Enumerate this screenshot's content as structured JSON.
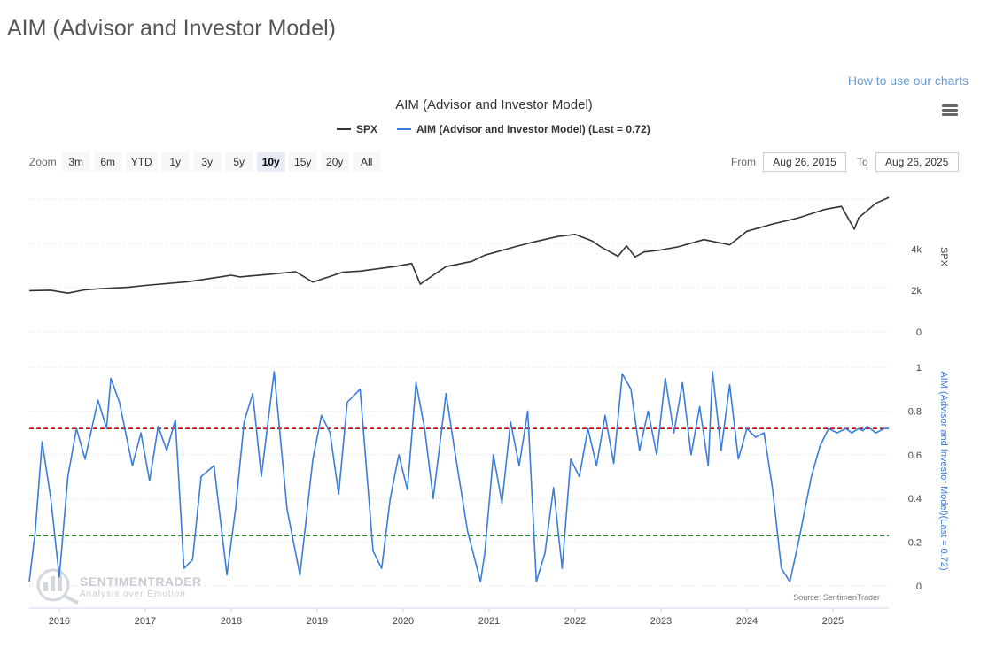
{
  "page": {
    "title": "AIM (Advisor and Investor Model)",
    "help_link": "How to use our charts"
  },
  "toolbar": {
    "zoom_label": "Zoom",
    "zoom_buttons": [
      "3m",
      "6m",
      "YTD",
      "1y",
      "3y",
      "5y",
      "10y",
      "15y",
      "20y",
      "All"
    ],
    "active_zoom": "10y",
    "from_label": "From",
    "from_value": "Aug 26, 2015",
    "to_label": "To",
    "to_value": "Aug 26, 2025"
  },
  "colors": {
    "spx": "#333333",
    "aim": "#3b7dd8",
    "upper_threshold": "#cc0000",
    "lower_threshold": "#1a8a1a",
    "grid": "#dddddd"
  },
  "watermark": {
    "name": "SENTIMENTRADER",
    "tagline": "Analysis over Emotion"
  },
  "chart_data": {
    "type": "line",
    "title": "AIM (Advisor and Investor Model)",
    "legend": {
      "spx": "SPX",
      "aim": "AIM (Advisor and Investor Model) (Last = 0.72)"
    },
    "source": "Source: SentimenTrader",
    "x_range": [
      2015.65,
      2025.65
    ],
    "x_ticks": [
      "2016",
      "2017",
      "2018",
      "2019",
      "2020",
      "2021",
      "2022",
      "2023",
      "2024",
      "2025"
    ],
    "spx_axis": {
      "title": "SPX",
      "ticks": [
        0,
        2000,
        4000
      ],
      "tick_labels": [
        "0",
        "2k",
        "4k"
      ],
      "range": [
        0,
        6400
      ]
    },
    "aim_axis": {
      "title": "AIM (Advisor and Investor Model)(Last = 0.72)",
      "ticks": [
        0,
        0.2,
        0.4,
        0.6,
        0.8,
        1
      ],
      "tick_labels": [
        "0",
        "0.2",
        "0.4",
        "0.6",
        "0.8",
        "1"
      ],
      "range": [
        0,
        1
      ]
    },
    "thresholds": {
      "upper": 0.72,
      "lower": 0.23
    },
    "series": [
      {
        "name": "SPX",
        "x": [
          2015.65,
          2015.9,
          2016.1,
          2016.3,
          2016.5,
          2016.8,
          2017.0,
          2017.5,
          2018.0,
          2018.1,
          2018.5,
          2018.75,
          2018.95,
          2019.3,
          2019.5,
          2019.9,
          2020.1,
          2020.2,
          2020.25,
          2020.5,
          2020.8,
          2020.95,
          2021.3,
          2021.5,
          2021.8,
          2022.0,
          2022.2,
          2022.3,
          2022.5,
          2022.6,
          2022.7,
          2022.8,
          2023.0,
          2023.2,
          2023.5,
          2023.8,
          2024.0,
          2024.3,
          2024.6,
          2024.9,
          2025.1,
          2025.25,
          2025.3,
          2025.5,
          2025.65
        ],
        "values": [
          1990,
          2010,
          1870,
          2030,
          2090,
          2150,
          2240,
          2420,
          2730,
          2650,
          2800,
          2900,
          2400,
          2880,
          2930,
          3150,
          3300,
          2300,
          2450,
          3150,
          3400,
          3700,
          4100,
          4320,
          4600,
          4700,
          4380,
          4100,
          3650,
          4150,
          3620,
          3850,
          3950,
          4100,
          4450,
          4200,
          4850,
          5200,
          5500,
          5900,
          6050,
          4950,
          5500,
          6200,
          6480
        ]
      },
      {
        "name": "AIM (Advisor and Investor Model)",
        "x": [
          2015.65,
          2015.72,
          2015.8,
          2015.9,
          2016.0,
          2016.1,
          2016.2,
          2016.3,
          2016.45,
          2016.55,
          2016.6,
          2016.7,
          2016.85,
          2016.95,
          2017.05,
          2017.15,
          2017.25,
          2017.35,
          2017.45,
          2017.55,
          2017.65,
          2017.8,
          2017.95,
          2018.05,
          2018.15,
          2018.25,
          2018.35,
          2018.5,
          2018.65,
          2018.8,
          2018.95,
          2019.05,
          2019.15,
          2019.25,
          2019.35,
          2019.5,
          2019.65,
          2019.75,
          2019.85,
          2019.95,
          2020.05,
          2020.15,
          2020.25,
          2020.35,
          2020.5,
          2020.6,
          2020.75,
          2020.9,
          2020.95,
          2021.05,
          2021.15,
          2021.25,
          2021.35,
          2021.45,
          2021.55,
          2021.65,
          2021.75,
          2021.85,
          2021.95,
          2022.05,
          2022.15,
          2022.25,
          2022.35,
          2022.45,
          2022.55,
          2022.65,
          2022.75,
          2022.85,
          2022.95,
          2023.05,
          2023.15,
          2023.25,
          2023.35,
          2023.45,
          2023.55,
          2023.6,
          2023.7,
          2023.8,
          2023.9,
          2024.0,
          2024.1,
          2024.2,
          2024.3,
          2024.4,
          2024.5,
          2024.6,
          2024.7,
          2024.75,
          2024.85,
          2024.9,
          2024.95,
          2025.05,
          2025.1,
          2025.15,
          2025.22,
          2025.3,
          2025.35,
          2025.4,
          2025.5,
          2025.6,
          2025.65
        ],
        "values": [
          0.02,
          0.25,
          0.66,
          0.4,
          0.04,
          0.5,
          0.72,
          0.58,
          0.85,
          0.72,
          0.95,
          0.84,
          0.55,
          0.7,
          0.48,
          0.73,
          0.62,
          0.76,
          0.08,
          0.12,
          0.5,
          0.55,
          0.05,
          0.35,
          0.75,
          0.88,
          0.5,
          0.98,
          0.35,
          0.05,
          0.58,
          0.78,
          0.7,
          0.42,
          0.84,
          0.9,
          0.16,
          0.08,
          0.4,
          0.6,
          0.44,
          0.93,
          0.72,
          0.4,
          0.88,
          0.62,
          0.25,
          0.02,
          0.15,
          0.6,
          0.38,
          0.75,
          0.55,
          0.8,
          0.02,
          0.15,
          0.45,
          0.08,
          0.58,
          0.5,
          0.72,
          0.55,
          0.78,
          0.56,
          0.97,
          0.9,
          0.62,
          0.8,
          0.6,
          0.95,
          0.7,
          0.93,
          0.6,
          0.82,
          0.55,
          0.98,
          0.62,
          0.92,
          0.58,
          0.72,
          0.68,
          0.7,
          0.44,
          0.08,
          0.02,
          0.2,
          0.4,
          0.5,
          0.64,
          0.68,
          0.72,
          0.7,
          0.71,
          0.72,
          0.7,
          0.72,
          0.71,
          0.73,
          0.7,
          0.72,
          0.72
        ]
      }
    ]
  }
}
